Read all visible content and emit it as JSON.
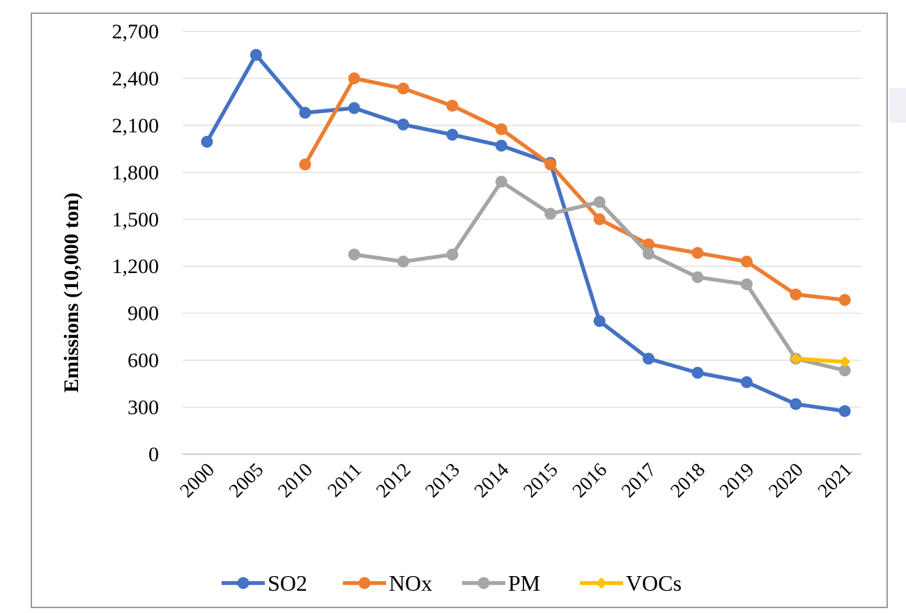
{
  "chart_data": {
    "type": "line",
    "categories": [
      "2000",
      "2005",
      "2010",
      "2011",
      "2012",
      "2013",
      "2014",
      "2015",
      "2016",
      "2017",
      "2018",
      "2019",
      "2020",
      "2021"
    ],
    "ylabel": "Emissions (10,000 ton)",
    "xlabel": "",
    "ylim": [
      0,
      2700
    ],
    "yticks": [
      0,
      300,
      600,
      900,
      1200,
      1500,
      1800,
      2100,
      2400,
      2700
    ],
    "ytick_labels": [
      "0",
      "300",
      "600",
      "900",
      "1,200",
      "1,500",
      "1,800",
      "2,100",
      "2,400",
      "2,700"
    ],
    "grid": "horizontal",
    "legend_position": "bottom",
    "series": [
      {
        "name": "SO2",
        "color": "#4472c4",
        "marker": "circle",
        "values": [
          1995,
          2550,
          2180,
          2210,
          2105,
          2040,
          1970,
          1860,
          850,
          610,
          520,
          460,
          320,
          275
        ]
      },
      {
        "name": "NOx",
        "color": "#ed7d31",
        "marker": "circle",
        "values": [
          null,
          null,
          1850,
          2400,
          2335,
          2225,
          2075,
          1850,
          1500,
          1340,
          1285,
          1230,
          1020,
          985
        ]
      },
      {
        "name": "PM",
        "color": "#a5a5a5",
        "marker": "circle",
        "values": [
          null,
          null,
          null,
          1275,
          1230,
          1275,
          1740,
          1535,
          1610,
          1280,
          1130,
          1085,
          610,
          535
        ]
      },
      {
        "name": "VOCs",
        "color": "#ffc000",
        "marker": "diamond",
        "values": [
          null,
          null,
          null,
          null,
          null,
          null,
          null,
          null,
          null,
          null,
          null,
          null,
          610,
          590
        ]
      }
    ]
  }
}
